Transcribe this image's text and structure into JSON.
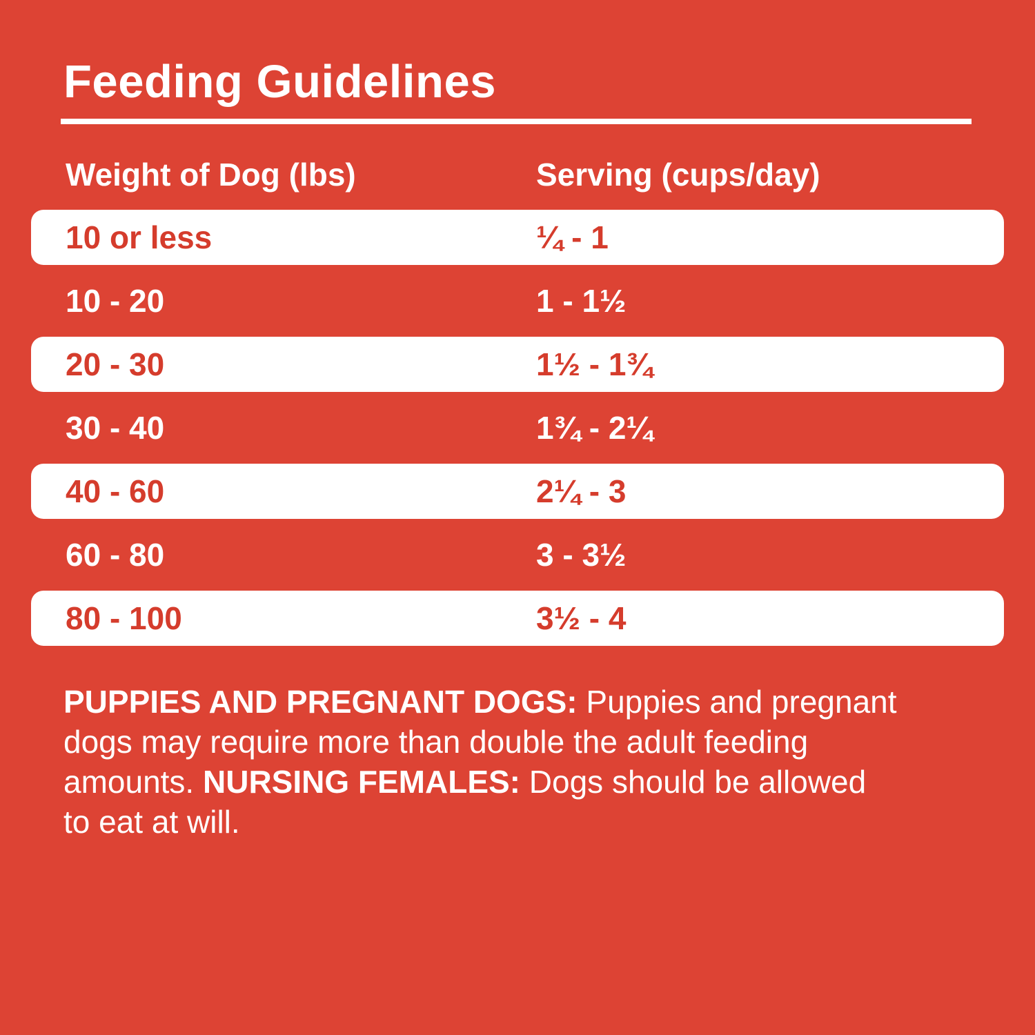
{
  "colors": {
    "background_red": "#DD4334",
    "row_text_red": "#D53C2C",
    "white": "#FFFFFF"
  },
  "title": "Feeding Guidelines",
  "table": {
    "col1_header": "Weight of Dog (lbs)",
    "col2_header": "Serving (cups/day)",
    "rows": [
      {
        "weight": "10 or less",
        "serving": "¼ - 1",
        "variant": "white"
      },
      {
        "weight": "10 - 20",
        "serving": "1 - 1½",
        "variant": "red"
      },
      {
        "weight": "20 - 30",
        "serving": "1½ - 1¾",
        "variant": "white"
      },
      {
        "weight": "30 - 40",
        "serving": "1¾ - 2¼",
        "variant": "red"
      },
      {
        "weight": "40 - 60",
        "serving": "2¼ - 3",
        "variant": "white"
      },
      {
        "weight": "60 - 80",
        "serving": "3 - 3½",
        "variant": "red"
      },
      {
        "weight": "80 - 100",
        "serving": "3½ - 4",
        "variant": "white"
      }
    ]
  },
  "footnote": {
    "lines": [
      [
        {
          "text": "PUPPIES AND PREGNANT DOGS:",
          "bold": true
        },
        {
          "text": " Puppies and pregnant",
          "bold": false
        }
      ],
      [
        {
          "text": "dogs may require more than double the adult feeding",
          "bold": false
        }
      ],
      [
        {
          "text": "amounts. ",
          "bold": false
        },
        {
          "text": "NURSING FEMALES:",
          "bold": true
        },
        {
          "text": " Dogs should be allowed",
          "bold": false
        }
      ],
      [
        {
          "text": "to eat at will.",
          "bold": false
        }
      ]
    ]
  }
}
